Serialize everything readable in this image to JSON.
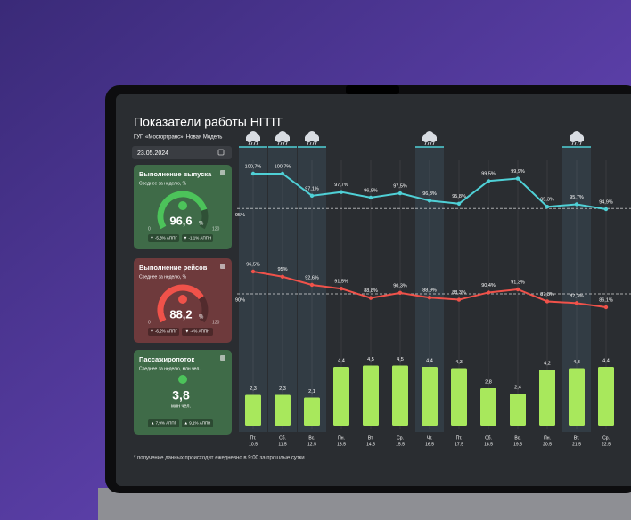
{
  "header": {
    "title": "Показатели работы НГПТ",
    "subtitle": "ГУП «Мосгортранс», Новая Модель",
    "date": "23.05.2024"
  },
  "panels": [
    {
      "title": "Выполнение выпуска",
      "subtitle": "Среднее за неделю, %",
      "value": 96.6,
      "value_label": "96,6",
      "unit": "%",
      "gauge_min": 0,
      "gauge_max": 120,
      "color": "#3f6b48",
      "accent": "#4cc35a",
      "badges": [
        "▼ -5,3% АППГ",
        "▼ -1,1% АППН"
      ]
    },
    {
      "title": "Выполнение рейсов",
      "subtitle": "Среднее за неделю, %",
      "value": 88.2,
      "value_label": "88,2",
      "unit": "%",
      "gauge_min": 0,
      "gauge_max": 120,
      "color": "#6e3a3c",
      "accent": "#f0524a",
      "badges": [
        "▼ -6,2% АППГ",
        "▼ -4% АППН"
      ]
    },
    {
      "title": "Пассажиропоток",
      "subtitle": "Среднее за неделю, млн чел.",
      "value": 3.8,
      "value_label": "3,8",
      "unit": "млн чел.",
      "color": "#3f6b48",
      "accent": "#4cc35a",
      "badges": [
        "▲ 7,9% АППГ",
        "▲ 9,1% АППН"
      ]
    }
  ],
  "rows": [
    {
      "type": "line",
      "color": "#4fd0d6",
      "low_color": "#f0524a",
      "target": 95,
      "target_label": "95%",
      "values": [
        100.7,
        100.7,
        97.1,
        97.7,
        96.8,
        97.5,
        96.3,
        95.8,
        99.5,
        99.9,
        95.3,
        95.7,
        94.9
      ],
      "value_labels": [
        "100,7%",
        "100,7%",
        "97,1%",
        "97,7%",
        "96,8%",
        "97,5%",
        "96,3%",
        "95,8%",
        "99,5%",
        "99,9%",
        "95,3%",
        "95,7%",
        "94,9%"
      ]
    },
    {
      "type": "line",
      "color": "#f0524a",
      "low_color": "#f0524a",
      "target": 90,
      "target_label": "90%",
      "values": [
        96.5,
        95,
        92.6,
        91.5,
        88.8,
        90.3,
        88.9,
        88.3,
        90.4,
        91.3,
        87.8,
        87.3,
        86.1
      ],
      "value_labels": [
        "96,5%",
        "95%",
        "92,6%",
        "91,5%",
        "88,8%",
        "90,3%",
        "88,9%",
        "88,3%",
        "90,4%",
        "91,3%",
        "87,8%",
        "87,3%",
        "86,1%"
      ]
    },
    {
      "type": "bar",
      "color": "#a8e85c",
      "values": [
        2.3,
        2.3,
        2.1,
        4.4,
        4.5,
        4.5,
        4.4,
        4.3,
        2.8,
        2.4,
        4.2,
        4.3,
        4.4
      ],
      "value_labels": [
        "2,3",
        "2,3",
        "2,1",
        "4,4",
        "4,5",
        "4,5",
        "4,4",
        "4,3",
        "2,8",
        "2,4",
        "4,2",
        "4,3",
        "4,4"
      ]
    }
  ],
  "days": [
    [
      "Пт.",
      "10.5"
    ],
    [
      "Сб.",
      "11.5"
    ],
    [
      "Вс.",
      "12.5"
    ],
    [
      "Пн.",
      "13.5"
    ],
    [
      "Вт.",
      "14.5"
    ],
    [
      "Ср.",
      "15.5"
    ],
    [
      "Чт.",
      "16.5"
    ],
    [
      "Пт.",
      "17.5"
    ],
    [
      "Сб.",
      "18.5"
    ],
    [
      "Вс.",
      "19.5"
    ],
    [
      "Пн.",
      "20.5"
    ],
    [
      "Вт.",
      "21.5"
    ],
    [
      "Ср.",
      "22.5"
    ]
  ],
  "red_days": [
    0,
    1,
    2,
    8,
    9
  ],
  "rain_days": [
    0,
    1,
    2,
    6,
    11
  ],
  "footnote": "* получение данных происходит ежедневно в 9:00 за прошлые сутки"
}
